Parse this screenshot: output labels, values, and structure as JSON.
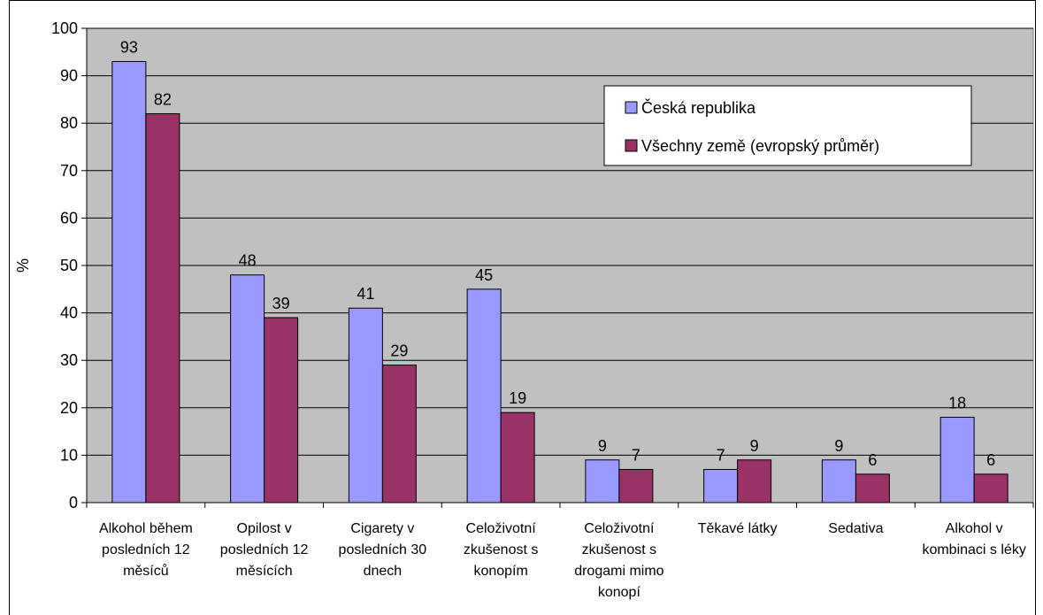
{
  "chart_data": {
    "type": "bar",
    "y_label": "%",
    "categories": [
      "Alkohol během posledních 12 měsíců",
      "Opilost v posledních 12 měsících",
      "Cigarety v posledních 30 dnech",
      "Celoživotní zkušenost s konopím",
      "Celoživotní zkušenost s drogami mimo konopí",
      "Těkavé látky",
      "Sedativa",
      "Alkohol v kombinaci s léky"
    ],
    "series": [
      {
        "name": "Česká republika",
        "color": "#9999ff",
        "values": [
          93,
          48,
          41,
          45,
          9,
          7,
          9,
          18
        ]
      },
      {
        "name": "Všechny země (evropský průměr)",
        "color": "#993366",
        "values": [
          82,
          39,
          29,
          19,
          7,
          9,
          6,
          6
        ]
      }
    ],
    "ylim": [
      0,
      100
    ],
    "yticks": [
      0,
      10,
      20,
      30,
      40,
      50,
      60,
      70,
      80,
      90,
      100
    ],
    "grid": true,
    "plot_background": "#c0c0c0",
    "legend": "top-right"
  }
}
